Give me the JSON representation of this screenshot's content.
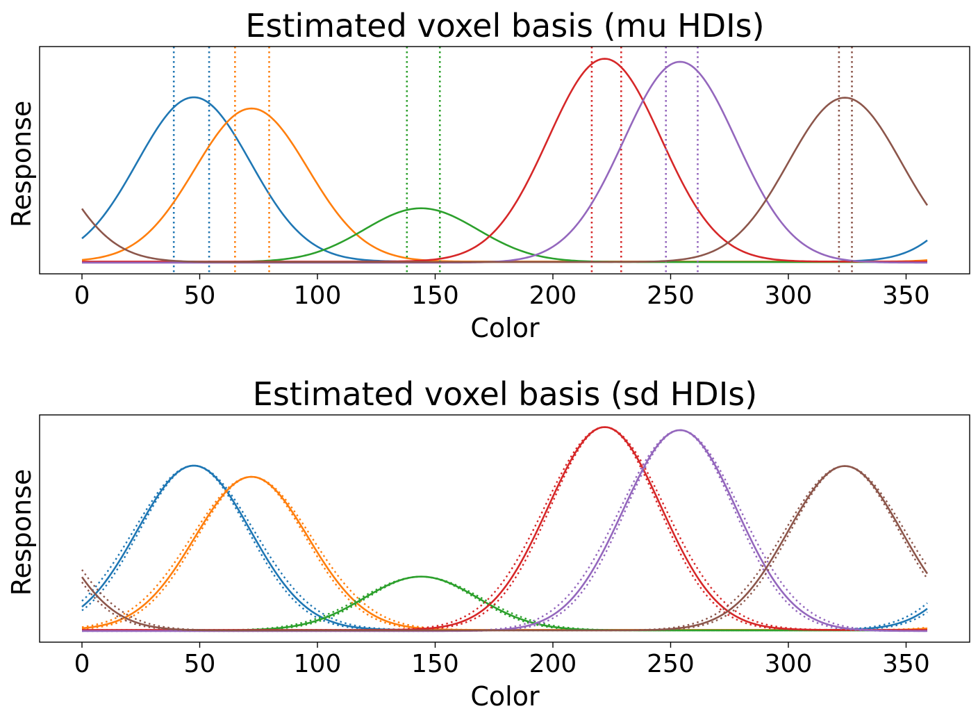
{
  "chart_data": [
    {
      "type": "line",
      "title": "Estimated voxel basis (mu HDIs)",
      "xlabel": "Color",
      "ylabel": "Response",
      "xlim": [
        -18,
        377
      ],
      "ylim": [
        -0.05,
        1.07
      ],
      "xticks": [
        0,
        50,
        100,
        150,
        200,
        250,
        300,
        350
      ],
      "yticks_visible": false,
      "grid": false,
      "legend": "none",
      "hdi_kind": "mu",
      "series": [
        {
          "color": "#1f77b4",
          "mu": 47.5,
          "sd": 24,
          "amp": 0.81,
          "base": 0.01,
          "hdi": [
            39,
            54
          ]
        },
        {
          "color": "#ff7f0e",
          "mu": 72,
          "sd": 24,
          "amp": 0.755,
          "base": 0.01,
          "hdi": [
            65,
            79.5
          ]
        },
        {
          "color": "#2ca02c",
          "mu": 144,
          "sd": 24,
          "amp": 0.265,
          "base": 0.008,
          "hdi": [
            138,
            152
          ]
        },
        {
          "color": "#d62728",
          "mu": 222,
          "sd": 24,
          "amp": 1.0,
          "base": 0.01,
          "hdi": [
            216.5,
            229
          ]
        },
        {
          "color": "#9467bd",
          "mu": 254,
          "sd": 24,
          "amp": 0.99,
          "base": 0.005,
          "hdi": [
            248,
            261.5
          ]
        },
        {
          "color": "#8c564b",
          "mu": 324,
          "sd": 24,
          "amp": 0.81,
          "base": 0.008,
          "hdi": [
            321.5,
            327
          ]
        }
      ]
    },
    {
      "type": "line",
      "title": "Estimated voxel basis (sd HDIs)",
      "xlabel": "Color",
      "ylabel": "Response",
      "xlim": [
        -18,
        377
      ],
      "ylim": [
        -0.05,
        1.07
      ],
      "xticks": [
        0,
        50,
        100,
        150,
        200,
        250,
        300,
        350
      ],
      "yticks_visible": false,
      "grid": false,
      "legend": "none",
      "hdi_kind": "sd",
      "series": [
        {
          "color": "#1f77b4",
          "mu": 47.5,
          "sd": 24,
          "amp": 0.81,
          "base": 0.01,
          "sd_hdi": [
            23,
            25.5
          ]
        },
        {
          "color": "#ff7f0e",
          "mu": 72,
          "sd": 24,
          "amp": 0.755,
          "base": 0.01,
          "sd_hdi": [
            23,
            25.5
          ]
        },
        {
          "color": "#2ca02c",
          "mu": 144,
          "sd": 24,
          "amp": 0.265,
          "base": 0.008,
          "sd_hdi": [
            23,
            25.5
          ]
        },
        {
          "color": "#d62728",
          "mu": 222,
          "sd": 24,
          "amp": 1.0,
          "base": 0.01,
          "sd_hdi": [
            23,
            25.5
          ]
        },
        {
          "color": "#9467bd",
          "mu": 254,
          "sd": 24,
          "amp": 0.99,
          "base": 0.005,
          "sd_hdi": [
            23,
            25.5
          ]
        },
        {
          "color": "#8c564b",
          "mu": 324,
          "sd": 24,
          "amp": 0.81,
          "base": 0.008,
          "sd_hdi": [
            23,
            25.5
          ]
        }
      ]
    }
  ]
}
